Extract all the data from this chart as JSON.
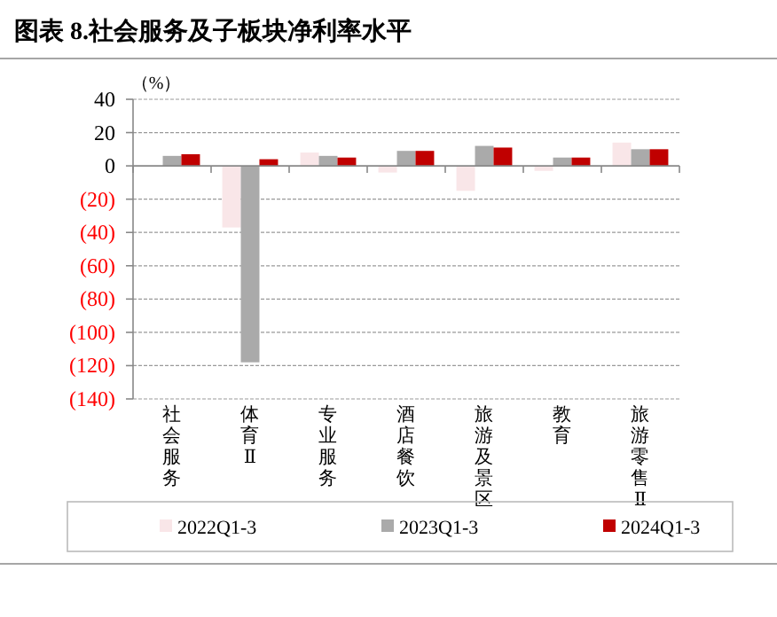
{
  "chart_data": {
    "type": "bar",
    "title": "图表 8.社会服务及子板块净利率水平",
    "ylabel": "（%）",
    "categories": [
      "社会服务",
      "体育Ⅱ",
      "专业服务",
      "酒店餐饮",
      "旅游及景区",
      "教育",
      "旅游零售Ⅱ"
    ],
    "series": [
      {
        "name": "2022Q1-3",
        "color": "#f9e6e8",
        "values": [
          null,
          -37,
          8,
          -4,
          -15,
          -3,
          14
        ]
      },
      {
        "name": "2023Q1-3",
        "color": "#aaaaaa",
        "values": [
          6,
          -118,
          6,
          9,
          12,
          5,
          10
        ]
      },
      {
        "name": "2024Q1-3",
        "color": "#c00000",
        "values": [
          7,
          4,
          5,
          9,
          11,
          5,
          10
        ]
      }
    ],
    "ylim": [
      -140,
      40
    ],
    "yticks": [
      40,
      20,
      0,
      {
        "value": -20,
        "label": "(20)"
      },
      {
        "value": -40,
        "label": "(40)"
      },
      {
        "value": -60,
        "label": "(60)"
      },
      {
        "value": -80,
        "label": "(80)"
      },
      {
        "value": -100,
        "label": "(100)"
      },
      {
        "value": -120,
        "label": "(120)"
      },
      {
        "value": -140,
        "label": "(140)"
      }
    ],
    "grid": "y",
    "legend": "bottom"
  }
}
